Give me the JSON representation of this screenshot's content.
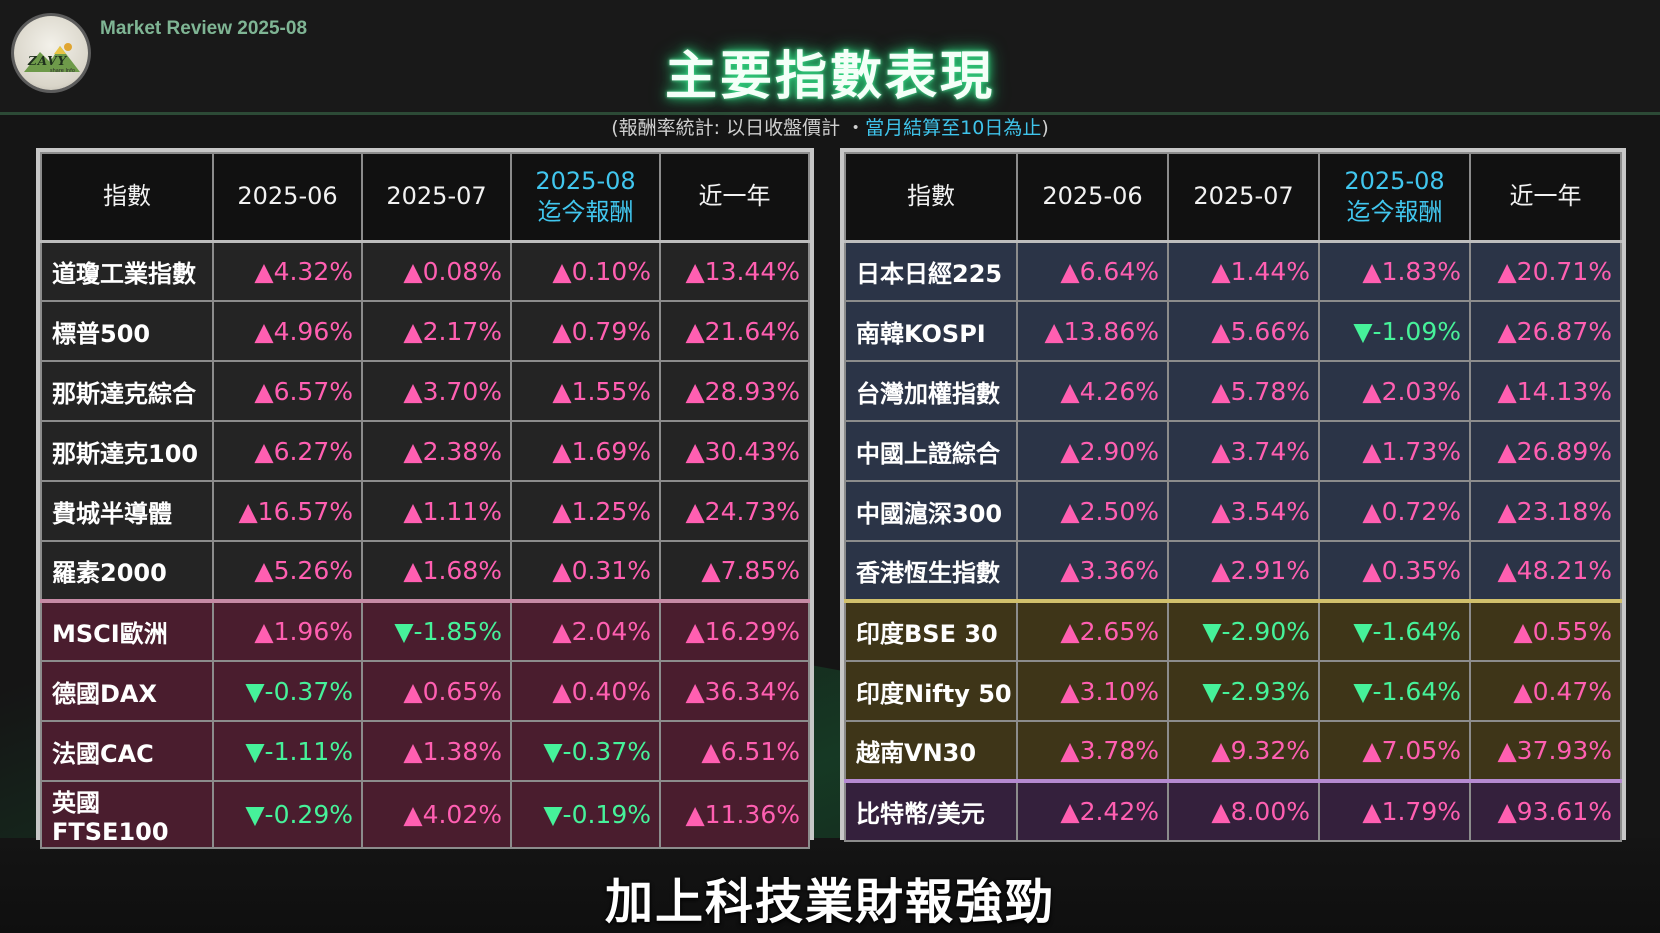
{
  "header": {
    "review_label": "Market Review 2025-08",
    "title": "主要指數表現",
    "note_prefix": "(報酬率統計: 以日收盤價計 ・",
    "note_highlight": "當月結算至10日為止",
    "note_suffix": ")",
    "logo_text": "ZAVY",
    "logo_sub": "share Info"
  },
  "columns": {
    "index": "指數",
    "jun": "2025-06",
    "jul": "2025-07",
    "aug_line1": "2025-08",
    "aug_line2": "迄今報酬",
    "year": "近一年"
  },
  "colors": {
    "up": "#ff5fb1",
    "down": "#46f29a",
    "accent": "#41c6ee",
    "title_glow": "#2fd680"
  },
  "symbols": {
    "up": "▲",
    "down": "▼"
  },
  "left_table": [
    {
      "name": "道瓊工業指數",
      "group": "us",
      "values": [
        "4.32%",
        "0.08%",
        "0.10%",
        "13.44%"
      ],
      "dirs": [
        "up",
        "up",
        "up",
        "up"
      ]
    },
    {
      "name": "標普500",
      "group": "us",
      "values": [
        "4.96%",
        "2.17%",
        "0.79%",
        "21.64%"
      ],
      "dirs": [
        "up",
        "up",
        "up",
        "up"
      ]
    },
    {
      "name": "那斯達克綜合",
      "group": "us",
      "values": [
        "6.57%",
        "3.70%",
        "1.55%",
        "28.93%"
      ],
      "dirs": [
        "up",
        "up",
        "up",
        "up"
      ]
    },
    {
      "name": "那斯達克100",
      "group": "us",
      "values": [
        "6.27%",
        "2.38%",
        "1.69%",
        "30.43%"
      ],
      "dirs": [
        "up",
        "up",
        "up",
        "up"
      ]
    },
    {
      "name": "費城半導體",
      "group": "us",
      "values": [
        "16.57%",
        "1.11%",
        "1.25%",
        "24.73%"
      ],
      "dirs": [
        "up",
        "up",
        "up",
        "up"
      ]
    },
    {
      "name": "羅素2000",
      "group": "us",
      "values": [
        "5.26%",
        "1.68%",
        "0.31%",
        "7.85%"
      ],
      "dirs": [
        "up",
        "up",
        "up",
        "up"
      ]
    },
    {
      "name": "MSCI歐洲",
      "group": "eu",
      "values": [
        "1.96%",
        "-1.85%",
        "2.04%",
        "16.29%"
      ],
      "dirs": [
        "up",
        "down",
        "up",
        "up"
      ]
    },
    {
      "name": "德國DAX",
      "group": "eu",
      "values": [
        "-0.37%",
        "0.65%",
        "0.40%",
        "36.34%"
      ],
      "dirs": [
        "down",
        "up",
        "up",
        "up"
      ]
    },
    {
      "name": "法國CAC",
      "group": "eu",
      "values": [
        "-1.11%",
        "1.38%",
        "-0.37%",
        "6.51%"
      ],
      "dirs": [
        "down",
        "up",
        "down",
        "up"
      ]
    },
    {
      "name": "英國FTSE100",
      "group": "eu",
      "values": [
        "-0.29%",
        "4.02%",
        "-0.19%",
        "11.36%"
      ],
      "dirs": [
        "down",
        "up",
        "down",
        "up"
      ]
    }
  ],
  "right_table": [
    {
      "name": "日本日經225",
      "group": "as",
      "values": [
        "6.64%",
        "1.44%",
        "1.83%",
        "20.71%"
      ],
      "dirs": [
        "up",
        "up",
        "up",
        "up"
      ]
    },
    {
      "name": "南韓KOSPI",
      "group": "as",
      "values": [
        "13.86%",
        "5.66%",
        "-1.09%",
        "26.87%"
      ],
      "dirs": [
        "up",
        "up",
        "down",
        "up"
      ]
    },
    {
      "name": "台灣加權指數",
      "group": "as",
      "values": [
        "4.26%",
        "5.78%",
        "2.03%",
        "14.13%"
      ],
      "dirs": [
        "up",
        "up",
        "up",
        "up"
      ]
    },
    {
      "name": "中國上證綜合",
      "group": "as",
      "values": [
        "2.90%",
        "3.74%",
        "1.73%",
        "26.89%"
      ],
      "dirs": [
        "up",
        "up",
        "up",
        "up"
      ]
    },
    {
      "name": "中國滬深300",
      "group": "as",
      "values": [
        "2.50%",
        "3.54%",
        "0.72%",
        "23.18%"
      ],
      "dirs": [
        "up",
        "up",
        "up",
        "up"
      ]
    },
    {
      "name": "香港恆生指數",
      "group": "as",
      "values": [
        "3.36%",
        "2.91%",
        "0.35%",
        "48.21%"
      ],
      "dirs": [
        "up",
        "up",
        "up",
        "up"
      ]
    },
    {
      "name": "印度BSE 30",
      "group": "in",
      "values": [
        "2.65%",
        "-2.90%",
        "-1.64%",
        "0.55%"
      ],
      "dirs": [
        "up",
        "down",
        "down",
        "up"
      ]
    },
    {
      "name": "印度Nifty 50",
      "group": "in",
      "values": [
        "3.10%",
        "-2.93%",
        "-1.64%",
        "0.47%"
      ],
      "dirs": [
        "up",
        "down",
        "down",
        "up"
      ]
    },
    {
      "name": "越南VN30",
      "group": "in",
      "values": [
        "3.78%",
        "9.32%",
        "7.05%",
        "37.93%"
      ],
      "dirs": [
        "up",
        "up",
        "up",
        "up"
      ]
    },
    {
      "name": "比特幣/美元",
      "group": "btc",
      "values": [
        "2.42%",
        "8.00%",
        "1.79%",
        "93.61%"
      ],
      "dirs": [
        "up",
        "up",
        "up",
        "up"
      ]
    }
  ],
  "subtitle": "加上科技業財報強勁"
}
